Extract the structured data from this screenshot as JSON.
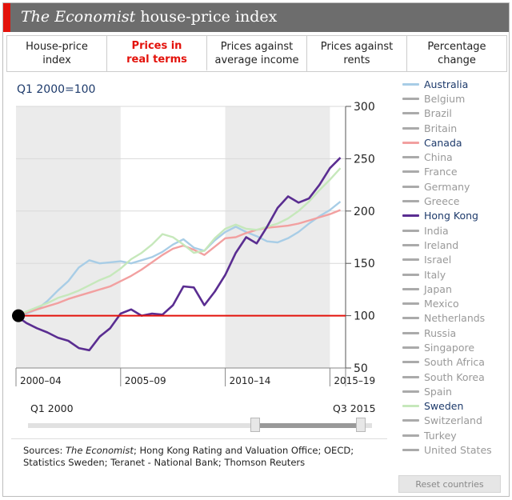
{
  "header": {
    "title_italic": "The Economist",
    "title_rest": " house-price index"
  },
  "tabs": [
    {
      "line1": "House-price",
      "line2": "index"
    },
    {
      "line1": "Prices in",
      "line2": "real terms"
    },
    {
      "line1": "Prices against",
      "line2": "average income"
    },
    {
      "line1": "Prices against",
      "line2": "rents"
    },
    {
      "line1": "Percentage",
      "line2": "change"
    }
  ],
  "colors": {
    "accent_red": "#e3120b",
    "australia": "#a8cde6",
    "canada": "#f2a0a0",
    "hong_kong": "#5a2d91",
    "sweden": "#c6e8bb",
    "inactive": "#aaaaaa",
    "band": "#ebebeb"
  },
  "slider": {
    "start_label": "Q1 2000",
    "end_label": "Q3 2015",
    "range_fraction": [
      0,
      1
    ]
  },
  "legend": [
    {
      "name": "Australia",
      "active": true,
      "color": "#a8cde6"
    },
    {
      "name": "Belgium",
      "active": false
    },
    {
      "name": "Brazil",
      "active": false
    },
    {
      "name": "Britain",
      "active": false
    },
    {
      "name": "Canada",
      "active": true,
      "color": "#f2a0a0"
    },
    {
      "name": "China",
      "active": false
    },
    {
      "name": "France",
      "active": false
    },
    {
      "name": "Germany",
      "active": false
    },
    {
      "name": "Greece",
      "active": false
    },
    {
      "name": "Hong Kong",
      "active": true,
      "color": "#5a2d91"
    },
    {
      "name": "India",
      "active": false
    },
    {
      "name": "Ireland",
      "active": false
    },
    {
      "name": "Israel",
      "active": false
    },
    {
      "name": "Italy",
      "active": false
    },
    {
      "name": "Japan",
      "active": false
    },
    {
      "name": "Mexico",
      "active": false
    },
    {
      "name": "Netherlands",
      "active": false
    },
    {
      "name": "Russia",
      "active": false
    },
    {
      "name": "Singapore",
      "active": false
    },
    {
      "name": "South Africa",
      "active": false
    },
    {
      "name": "South Korea",
      "active": false
    },
    {
      "name": "Spain",
      "active": false
    },
    {
      "name": "Sweden",
      "active": true,
      "color": "#c6e8bb"
    },
    {
      "name": "Switzerland",
      "active": false
    },
    {
      "name": "Turkey",
      "active": false
    },
    {
      "name": "United States",
      "active": false
    }
  ],
  "reset_label": "Reset countries",
  "sources": {
    "prefix": "Sources: ",
    "italic": "The Economist",
    "rest": "; Hong Kong Rating and Valuation Office; OECD; Statistics Sweden; Teranet - National Bank; Thomson Reuters"
  },
  "chart_data": {
    "type": "line",
    "unit_label": "Q1 2000=100",
    "xlabel": "",
    "ylabel": "",
    "x_start": 2000.0,
    "x_end": 2015.75,
    "ylim": [
      50,
      300
    ],
    "yticks": [
      50,
      100,
      150,
      200,
      250,
      300
    ],
    "baseline": 100,
    "period_labels": [
      "2000–04",
      "2005–09",
      "2010–14",
      "2015–19"
    ],
    "shaded_periods": [
      [
        2000,
        2005
      ],
      [
        2010,
        2015
      ]
    ],
    "grid": true,
    "series": [
      {
        "name": "Australia",
        "color": "#a8cde6",
        "x": [
          2000.0,
          2000.5,
          2001.0,
          2001.5,
          2002.0,
          2002.5,
          2003.0,
          2003.5,
          2004.0,
          2004.5,
          2005.0,
          2005.5,
          2006.0,
          2006.5,
          2007.0,
          2007.5,
          2008.0,
          2008.5,
          2009.0,
          2009.5,
          2010.0,
          2010.5,
          2011.0,
          2011.5,
          2012.0,
          2012.5,
          2013.0,
          2013.5,
          2014.0,
          2014.5,
          2015.0,
          2015.5
        ],
        "y": [
          100,
          102,
          106,
          114,
          124,
          133,
          146,
          153,
          150,
          151,
          152,
          150,
          153,
          156,
          161,
          168,
          173,
          165,
          162,
          172,
          180,
          185,
          180,
          176,
          171,
          170,
          174,
          180,
          188,
          195,
          201,
          209
        ]
      },
      {
        "name": "Canada",
        "color": "#f2a0a0",
        "x": [
          2000.0,
          2000.5,
          2001.0,
          2001.5,
          2002.0,
          2002.5,
          2003.0,
          2003.5,
          2004.0,
          2004.5,
          2005.0,
          2005.5,
          2006.0,
          2006.5,
          2007.0,
          2007.5,
          2008.0,
          2008.5,
          2009.0,
          2009.5,
          2010.0,
          2010.5,
          2011.0,
          2011.5,
          2012.0,
          2012.5,
          2013.0,
          2013.5,
          2014.0,
          2014.5,
          2015.0,
          2015.5
        ],
        "y": [
          100,
          103,
          106,
          109,
          112,
          116,
          119,
          122,
          125,
          128,
          133,
          138,
          144,
          151,
          158,
          164,
          167,
          163,
          158,
          166,
          174,
          175,
          179,
          182,
          184,
          185,
          186,
          188,
          191,
          194,
          197,
          201
        ]
      },
      {
        "name": "Sweden",
        "color": "#c6e8bb",
        "x": [
          2000.0,
          2000.5,
          2001.0,
          2001.5,
          2002.0,
          2002.5,
          2003.0,
          2003.5,
          2004.0,
          2004.5,
          2005.0,
          2005.5,
          2006.0,
          2006.5,
          2007.0,
          2007.5,
          2008.0,
          2008.5,
          2009.0,
          2009.5,
          2010.0,
          2010.5,
          2011.0,
          2011.5,
          2012.0,
          2012.5,
          2013.0,
          2013.5,
          2014.0,
          2014.5,
          2015.0,
          2015.5
        ],
        "y": [
          100,
          104,
          108,
          112,
          117,
          120,
          124,
          129,
          134,
          138,
          145,
          154,
          160,
          168,
          178,
          175,
          168,
          160,
          162,
          174,
          183,
          187,
          183,
          182,
          185,
          188,
          193,
          200,
          209,
          220,
          230,
          241
        ]
      },
      {
        "name": "Hong Kong",
        "color": "#5a2d91",
        "x": [
          2000.0,
          2000.5,
          2001.0,
          2001.5,
          2002.0,
          2002.5,
          2003.0,
          2003.5,
          2004.0,
          2004.5,
          2005.0,
          2005.5,
          2006.0,
          2006.5,
          2007.0,
          2007.5,
          2008.0,
          2008.5,
          2009.0,
          2009.5,
          2010.0,
          2010.5,
          2011.0,
          2011.5,
          2012.0,
          2012.5,
          2013.0,
          2013.5,
          2014.0,
          2014.5,
          2015.0,
          2015.5
        ],
        "y": [
          100,
          93,
          88,
          84,
          79,
          76,
          69,
          67,
          80,
          88,
          102,
          106,
          100,
          102,
          101,
          110,
          128,
          127,
          110,
          123,
          139,
          160,
          175,
          169,
          185,
          203,
          214,
          208,
          212,
          225,
          241,
          251
        ]
      }
    ]
  }
}
